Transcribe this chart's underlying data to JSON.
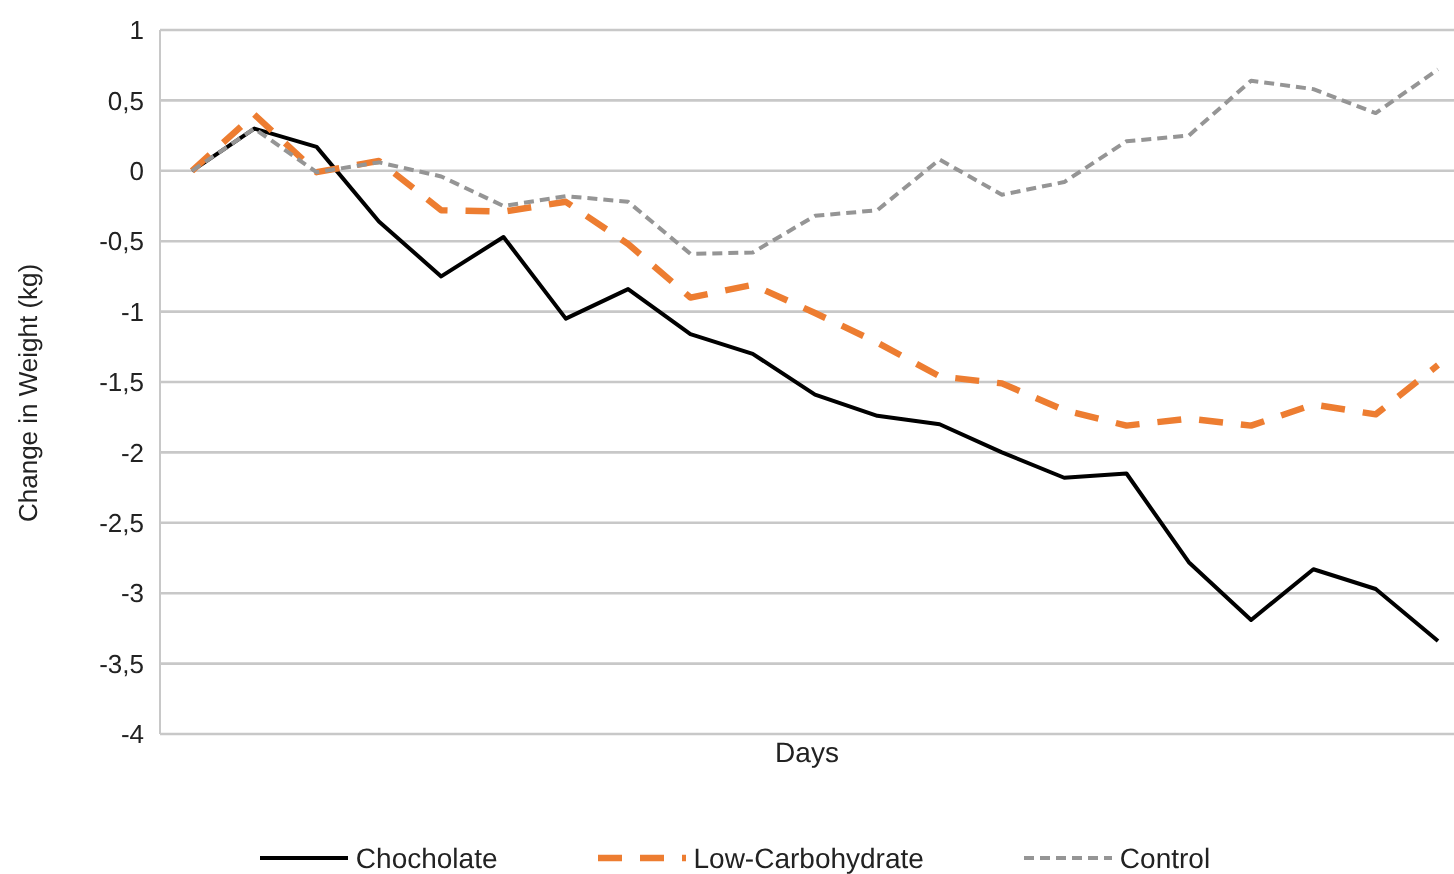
{
  "chart_data": {
    "type": "line",
    "xlabel": "Days",
    "ylabel": "Change in Weight (kg)",
    "categories": [
      null,
      null,
      null,
      null,
      null,
      null,
      null,
      null,
      null,
      null,
      null,
      null,
      null,
      null,
      null,
      null,
      null,
      null,
      null,
      null,
      null
    ],
    "series": [
      {
        "name": "Chocholate",
        "color": "#000000",
        "line_style": "solid",
        "values": [
          0,
          0.3,
          0.17,
          -0.36,
          -0.75,
          -0.47,
          -1.05,
          -0.84,
          -1.16,
          -1.3,
          -1.59,
          -1.74,
          -1.8,
          -2.0,
          -2.18,
          -2.15,
          -2.78,
          -3.19,
          -2.83,
          -2.97,
          -3.34
        ]
      },
      {
        "name": "Low-Carbohydrate",
        "color": "#ed7d31",
        "line_style": "dashed",
        "values": [
          0,
          0.4,
          -0.01,
          0.07,
          -0.28,
          -0.29,
          -0.22,
          -0.52,
          -0.9,
          -0.81,
          -1.01,
          -1.22,
          -1.46,
          -1.51,
          -1.7,
          -1.81,
          -1.76,
          -1.81,
          -1.66,
          -1.73,
          -1.38
        ]
      },
      {
        "name": "Control",
        "color": "#959595",
        "line_style": "dotted",
        "values": [
          0,
          0.3,
          -0.01,
          0.06,
          -0.04,
          -0.25,
          -0.18,
          -0.22,
          -0.59,
          -0.58,
          -0.32,
          -0.28,
          0.08,
          -0.17,
          -0.08,
          0.21,
          0.25,
          0.64,
          0.58,
          0.41,
          0.72
        ]
      }
    ],
    "ylim": [
      -4,
      1
    ],
    "yticks": [
      1,
      {
        "value": 0.5,
        "label": "0,5"
      },
      0,
      {
        "value": -0.5,
        "label": "-0,5"
      },
      -1,
      {
        "value": -1.5,
        "label": "-1,5"
      },
      -2,
      {
        "value": -2.5,
        "label": "-2,5"
      },
      -3,
      {
        "value": -3.5,
        "label": "-3,5"
      },
      -4
    ],
    "grid": "y",
    "legend": "bottom",
    "marker": "none"
  }
}
